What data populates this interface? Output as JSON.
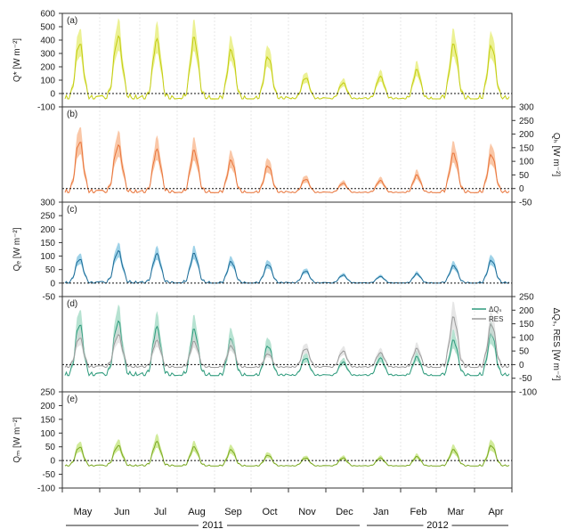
{
  "chart_data": {
    "type": "line",
    "months": [
      "May",
      "Jun",
      "Jul",
      "Aug",
      "Sep",
      "Oct",
      "Nov",
      "Dec",
      "Jan",
      "Feb",
      "Mar",
      "Apr"
    ],
    "years": [
      {
        "label": "2011",
        "from": 0,
        "to": 8
      },
      {
        "label": "2012",
        "from": 8,
        "to": 12
      }
    ],
    "panels": [
      {
        "id": "a",
        "label": "(a)",
        "ylabel": "Q* [W m⁻²]",
        "axis": "left",
        "ylim": [
          -100,
          600
        ],
        "ticks": [
          -100,
          0,
          100,
          200,
          300,
          400,
          500,
          600
        ],
        "color": "#c2cc10",
        "band": "#e6ec70",
        "series": [
          {
            "name": "",
            "peaks": [
              380,
              430,
              410,
              420,
              330,
              280,
              120,
              80,
              130,
              180,
              370,
              360
            ]
          }
        ],
        "band_spread": 0.28,
        "trough": -40
      },
      {
        "id": "b",
        "label": "(b)",
        "ylabel": "Qₕ [W m⁻²]",
        "axis": "right",
        "ylim": [
          -50,
          300
        ],
        "ticks": [
          -50,
          0,
          50,
          100,
          150,
          200,
          250,
          300
        ],
        "color": "#e8743a",
        "band": "#f8b48a",
        "series": [
          {
            "name": "",
            "peaks": [
              175,
              160,
              145,
              140,
              105,
              85,
              35,
              20,
              30,
              50,
              130,
              125
            ]
          }
        ],
        "band_spread": 0.3,
        "trough": -15
      },
      {
        "id": "c",
        "label": "(c)",
        "ylabel": "Qₑ [W m⁻²]",
        "axis": "left",
        "ylim": [
          -50,
          300
        ],
        "ticks": [
          -50,
          0,
          50,
          100,
          150,
          200,
          250,
          300
        ],
        "color": "#1d6b96",
        "band": "#7ec3e0",
        "series": [
          {
            "name": "",
            "peaks": [
              90,
              120,
              110,
              110,
              80,
              70,
              45,
              30,
              25,
              35,
              65,
              85
            ]
          }
        ],
        "band_spread": 0.25,
        "trough": 0
      },
      {
        "id": "d",
        "label": "(d)",
        "ylabel": "ΔQₛ, RES [W m⁻²]",
        "axis": "right",
        "ylim": [
          -100,
          250
        ],
        "ticks": [
          -100,
          -50,
          0,
          50,
          100,
          150,
          200,
          250
        ],
        "color": "#2e9a7c",
        "band": "#9dd8c2",
        "series": [
          {
            "name": "ΔQₛ",
            "peaks": [
              150,
              160,
              140,
              130,
              95,
              70,
              25,
              10,
              25,
              30,
              90,
              115
            ],
            "trough": -40,
            "color": "#2e9a7c"
          },
          {
            "name": "RES",
            "peaks": [
              100,
              110,
              90,
              85,
              70,
              40,
              60,
              50,
              45,
              60,
              175,
              150
            ],
            "trough": -10,
            "color": "#9a9a9a"
          }
        ],
        "band_spread": 0.3,
        "trough": -40
      },
      {
        "id": "e",
        "label": "(e)",
        "ylabel": "Qₘ [W m⁻²]",
        "axis": "left",
        "ylim": [
          -100,
          250
        ],
        "ticks": [
          -100,
          -50,
          0,
          50,
          100,
          150,
          200,
          250
        ],
        "color": "#7aa822",
        "band": "#c2e47a",
        "series": [
          {
            "name": "",
            "peaks": [
              50,
              55,
              70,
              50,
              40,
              20,
              10,
              10,
              10,
              15,
              40,
              55
            ]
          }
        ],
        "band_spread": 0.3,
        "trough": -20
      }
    ],
    "reference_line": 0,
    "legend": {
      "position": "top-right",
      "panel": "d"
    }
  }
}
